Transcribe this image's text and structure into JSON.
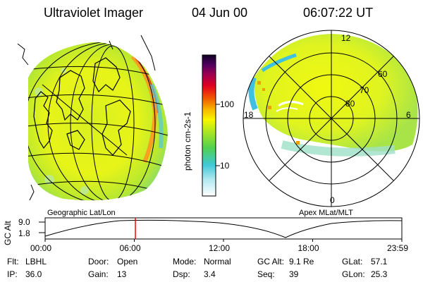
{
  "header": {
    "instrument": "Ultraviolet Imager",
    "date": "04 Jun 00",
    "time": "06:07:22 UT"
  },
  "colorbar": {
    "unit_label": "photon cm-2s-1",
    "ticks": [
      "100",
      "10"
    ],
    "scale": "log"
  },
  "panels": {
    "left_caption": "Geographic Lat/Lon",
    "right_caption": "Apex MLat/MLT"
  },
  "polar_plot": {
    "mlt_labels": [
      "12",
      "18",
      "6",
      "0"
    ],
    "mlat_labels": [
      "60",
      "70",
      "80"
    ]
  },
  "timeline": {
    "axis_label": "GC Alt",
    "y_ticks": [
      "9.0",
      "1.8"
    ],
    "x_ticks": [
      "00:00",
      "06:00",
      "12:00",
      "18:00",
      "23:59"
    ],
    "current_time_fraction": 0.253,
    "marker_color": "#ff0000"
  },
  "status": {
    "row1": [
      {
        "key": "Flt:",
        "value": "LBHL"
      },
      {
        "key": "Door:",
        "value": "Open"
      },
      {
        "key": "Mode:",
        "value": "Normal"
      },
      {
        "key": "GC Alt:",
        "value": "9.1 Re"
      },
      {
        "key": "GLat:",
        "value": "57.1"
      }
    ],
    "row2": [
      {
        "key": "IP:",
        "value": "36.0"
      },
      {
        "key": "Gain:",
        "value": "13"
      },
      {
        "key": "Dsp:",
        "value": "3.4"
      },
      {
        "key": "Seq:",
        "value": "39"
      },
      {
        "key": "GLon:",
        "value": "25.3"
      }
    ]
  }
}
